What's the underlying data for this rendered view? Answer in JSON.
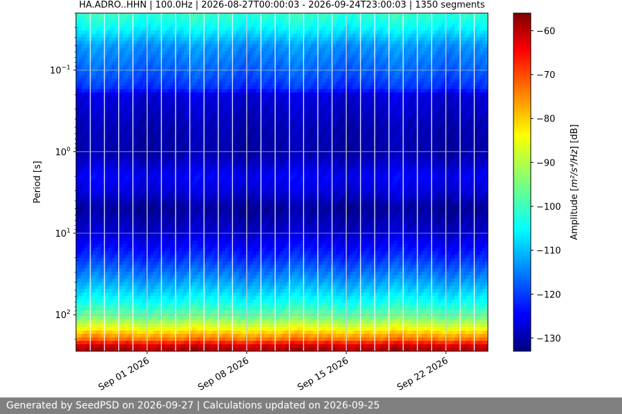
{
  "chart_data": {
    "type": "heatmap",
    "title": "HA.ADRO..HHN | 100.0Hz | 2026-08-27T00:00:03 - 2026-09-24T23:00:03 | 1350 segments",
    "xlabel": "",
    "ylabel": "Period [s]",
    "y_scale": "log",
    "y_inverted": true,
    "grid": true,
    "x_range": [
      "2026-08-27T00:00:03",
      "2026-09-24T23:00:03"
    ],
    "y_range_s": [
      0.02,
      280
    ],
    "x_ticks": [
      {
        "date": "2026-09-01",
        "label": "Sep 01 2026"
      },
      {
        "date": "2026-09-08",
        "label": "Sep 08 2026"
      },
      {
        "date": "2026-09-15",
        "label": "Sep 15 2026"
      },
      {
        "date": "2026-09-22",
        "label": "Sep 22 2026"
      }
    ],
    "y_ticks": [
      {
        "value": 0.1,
        "base": "10",
        "exp": "−1"
      },
      {
        "value": 1,
        "base": "10",
        "exp": "0"
      },
      {
        "value": 10,
        "base": "10",
        "exp": "1"
      },
      {
        "value": 100,
        "base": "10",
        "exp": "2"
      }
    ],
    "colorbar": {
      "label_prefix": "Amplitude [",
      "label_unit": "m²/s⁴/Hz",
      "label_suffix": "] [dB]",
      "range": [
        -133,
        -56
      ],
      "ticks": [
        -60,
        -70,
        -80,
        -90,
        -100,
        -110,
        -120,
        -130
      ],
      "colormap": "jet"
    },
    "period_profile_db": [
      {
        "period": 0.02,
        "db": -100
      },
      {
        "period": 0.03,
        "db": -104
      },
      {
        "period": 0.05,
        "db": -112
      },
      {
        "period": 0.1,
        "db": -116
      },
      {
        "period": 0.17,
        "db": -120
      },
      {
        "period": 0.2,
        "db": -126
      },
      {
        "period": 0.5,
        "db": -129
      },
      {
        "period": 1,
        "db": -130
      },
      {
        "period": 2,
        "db": -124
      },
      {
        "period": 3,
        "db": -126
      },
      {
        "period": 5,
        "db": -131
      },
      {
        "period": 10,
        "db": -127
      },
      {
        "period": 20,
        "db": -120
      },
      {
        "period": 40,
        "db": -111
      },
      {
        "period": 70,
        "db": -103
      },
      {
        "period": 110,
        "db": -95
      },
      {
        "period": 150,
        "db": -85
      },
      {
        "period": 200,
        "db": -74
      },
      {
        "period": 250,
        "db": -60
      }
    ],
    "data_gaps": [
      "2026-08-28",
      "2026-08-29",
      "2026-08-30",
      "2026-08-31",
      "2026-09-01",
      "2026-09-02",
      "2026-09-03",
      "2026-09-04",
      "2026-09-05",
      "2026-09-06",
      "2026-09-07",
      "2026-09-08",
      "2026-09-09",
      "2026-09-10",
      "2026-09-11",
      "2026-09-12",
      "2026-09-13",
      "2026-09-14",
      "2026-09-15",
      "2026-09-16",
      "2026-09-17",
      "2026-09-18",
      "2026-09-19",
      "2026-09-20",
      "2026-09-21",
      "2026-09-22",
      "2026-09-23",
      "2026-09-24"
    ]
  },
  "footer": {
    "text": "Generated by SeedPSD on 2026-09-27 | Calculations updated on 2026-09-25"
  }
}
